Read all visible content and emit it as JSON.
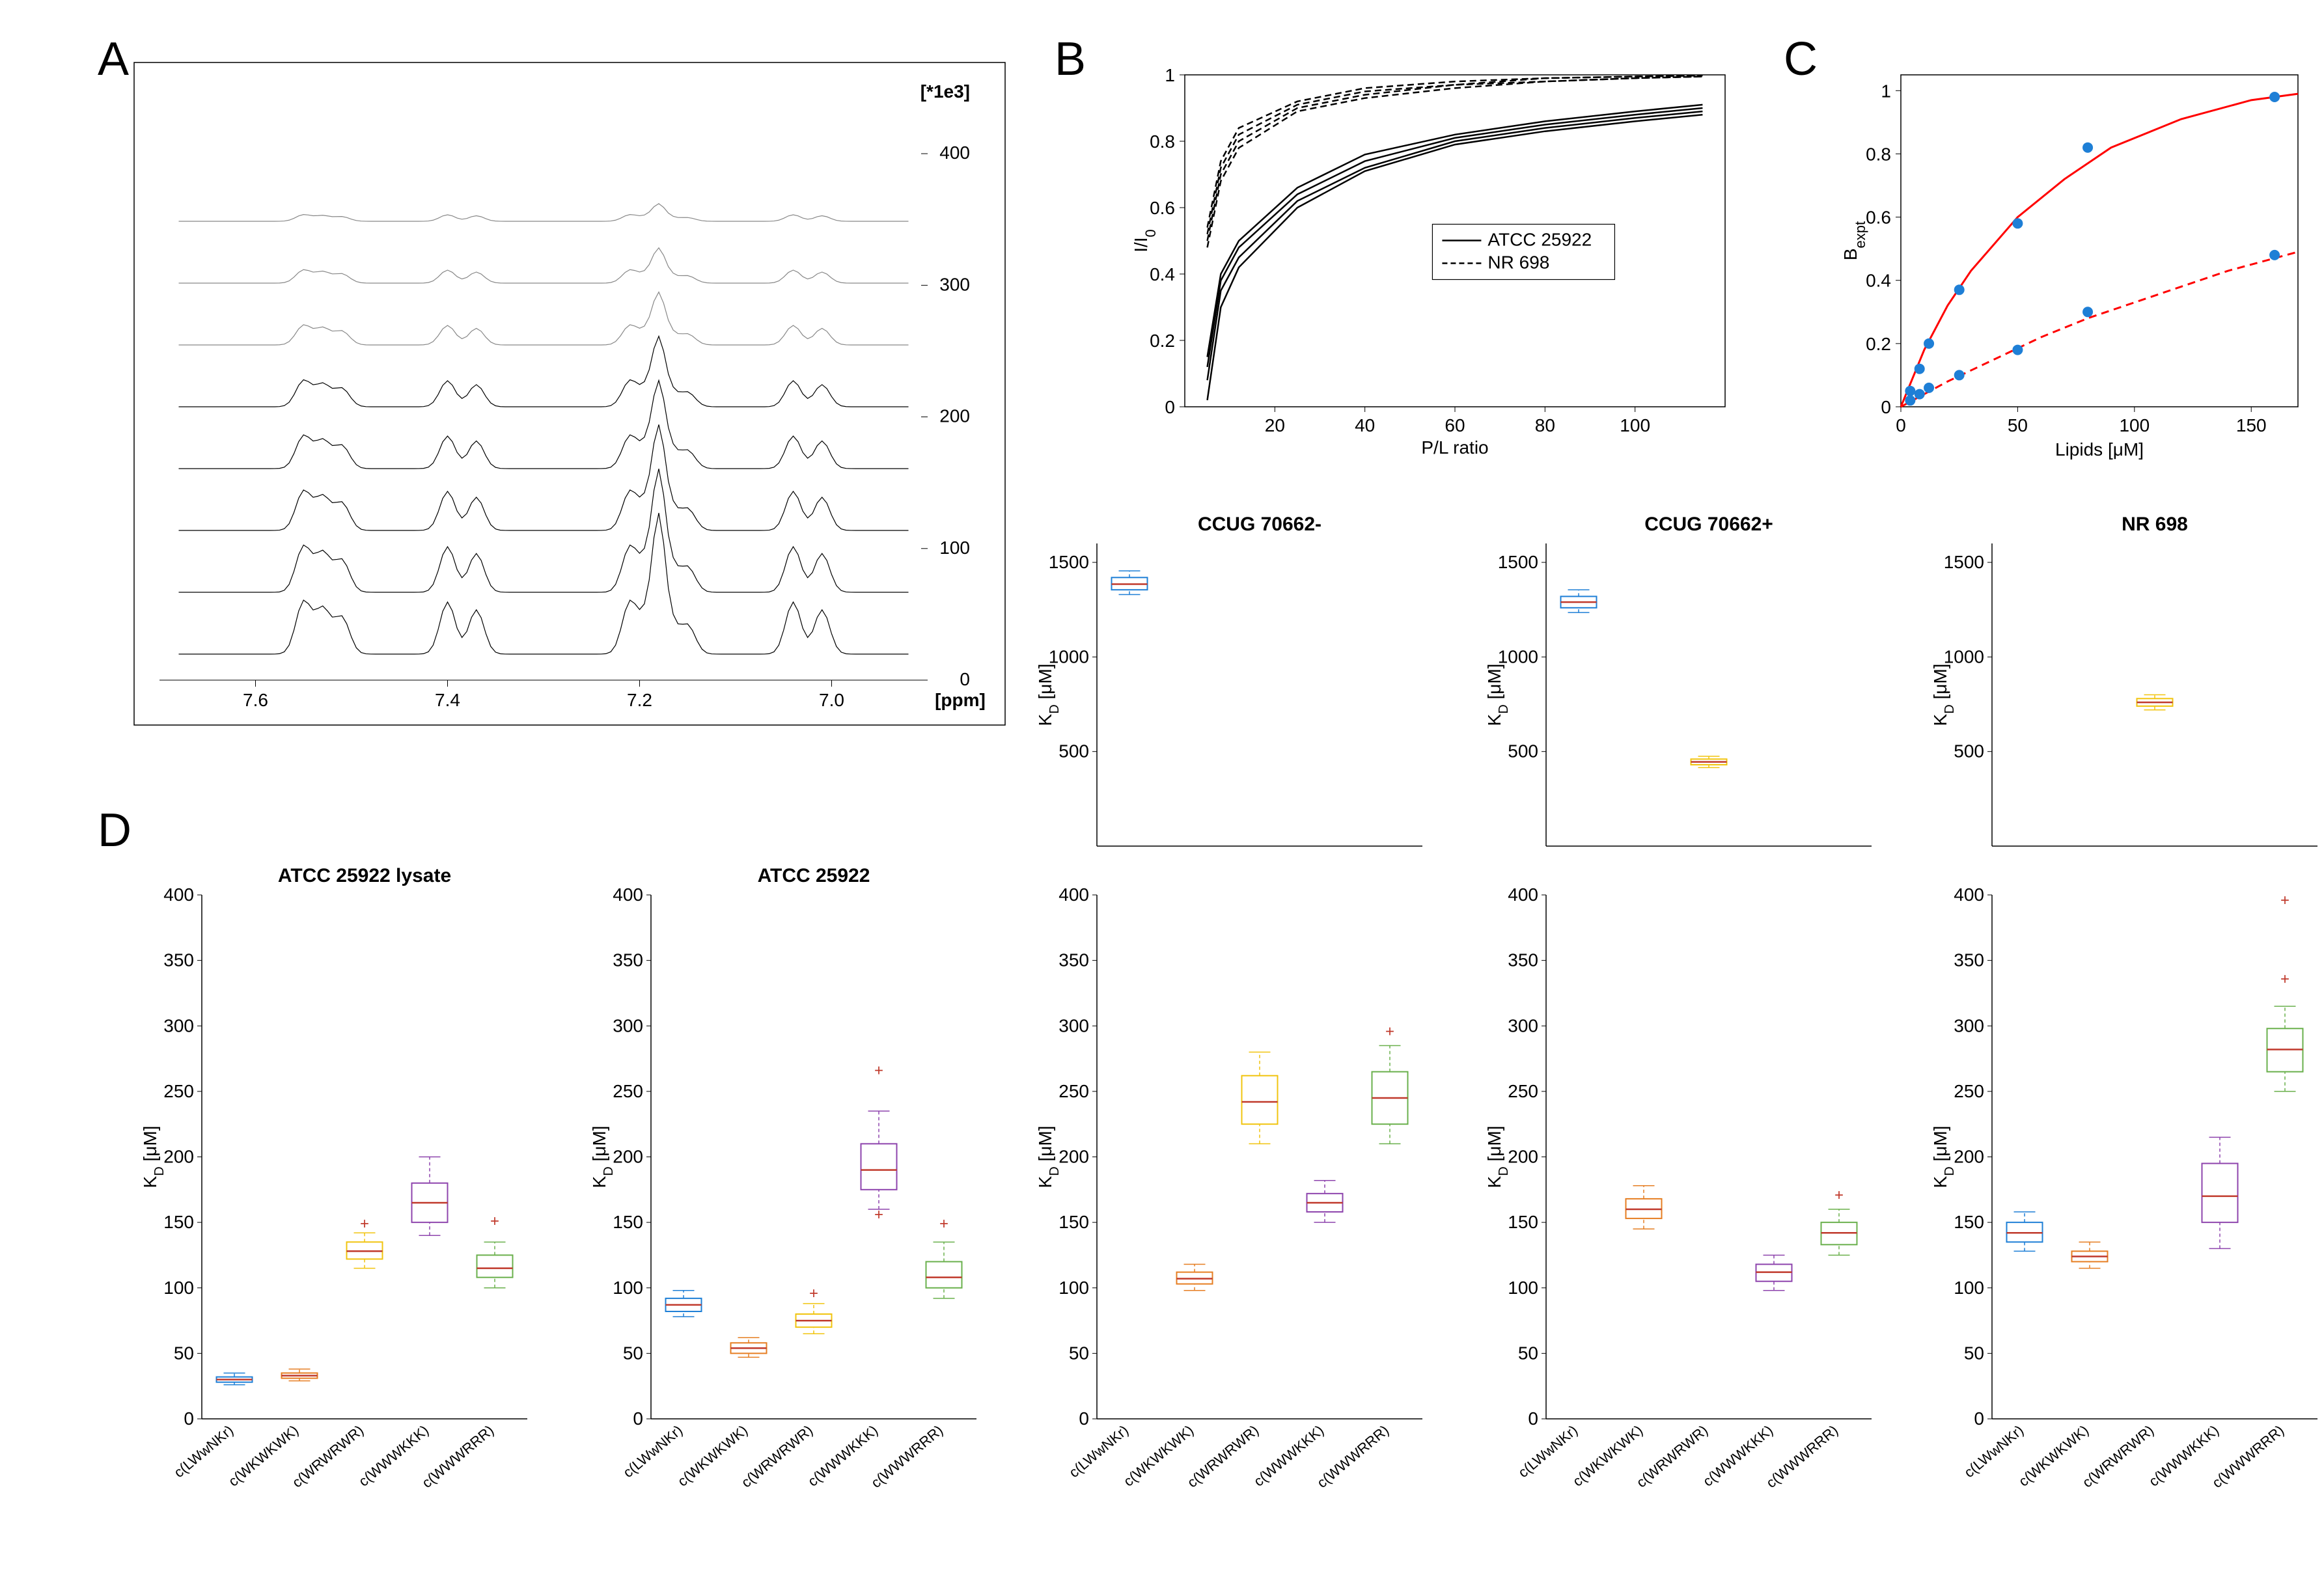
{
  "panels": {
    "A": {
      "label": "A"
    },
    "B": {
      "label": "B",
      "xlabel": "P/L ratio",
      "ylabel": "I/I₀",
      "legend": [
        "ATCC 25922",
        "NR 698"
      ],
      "xlim": [
        0,
        120
      ],
      "ylim": [
        0,
        1
      ],
      "xticks": [
        20,
        40,
        60,
        80,
        100
      ],
      "yticks": [
        0,
        0.2,
        0.4,
        0.6,
        0.8,
        1
      ],
      "series_solid": [
        [
          [
            5,
            0.08
          ],
          [
            8,
            0.35
          ],
          [
            12,
            0.45
          ],
          [
            25,
            0.62
          ],
          [
            40,
            0.72
          ],
          [
            60,
            0.8
          ],
          [
            80,
            0.84
          ],
          [
            100,
            0.87
          ],
          [
            115,
            0.89
          ]
        ],
        [
          [
            5,
            0.02
          ],
          [
            8,
            0.3
          ],
          [
            12,
            0.42
          ],
          [
            25,
            0.6
          ],
          [
            40,
            0.71
          ],
          [
            60,
            0.79
          ],
          [
            80,
            0.83
          ],
          [
            100,
            0.86
          ],
          [
            115,
            0.88
          ]
        ],
        [
          [
            5,
            0.12
          ],
          [
            8,
            0.38
          ],
          [
            12,
            0.48
          ],
          [
            25,
            0.64
          ],
          [
            40,
            0.74
          ],
          [
            60,
            0.81
          ],
          [
            80,
            0.85
          ],
          [
            100,
            0.88
          ],
          [
            115,
            0.9
          ]
        ],
        [
          [
            5,
            0.15
          ],
          [
            8,
            0.4
          ],
          [
            12,
            0.5
          ],
          [
            25,
            0.66
          ],
          [
            40,
            0.76
          ],
          [
            60,
            0.82
          ],
          [
            80,
            0.86
          ],
          [
            100,
            0.89
          ],
          [
            115,
            0.91
          ]
        ]
      ],
      "series_dashed": [
        [
          [
            5,
            0.5
          ],
          [
            8,
            0.7
          ],
          [
            12,
            0.8
          ],
          [
            25,
            0.9
          ],
          [
            40,
            0.94
          ],
          [
            60,
            0.97
          ],
          [
            80,
            0.98
          ],
          [
            100,
            0.99
          ],
          [
            115,
            0.995
          ]
        ],
        [
          [
            5,
            0.48
          ],
          [
            8,
            0.68
          ],
          [
            12,
            0.78
          ],
          [
            25,
            0.89
          ],
          [
            40,
            0.93
          ],
          [
            60,
            0.96
          ],
          [
            80,
            0.98
          ],
          [
            100,
            0.99
          ],
          [
            115,
            0.995
          ]
        ],
        [
          [
            5,
            0.52
          ],
          [
            8,
            0.72
          ],
          [
            12,
            0.82
          ],
          [
            25,
            0.91
          ],
          [
            40,
            0.95
          ],
          [
            60,
            0.97
          ],
          [
            80,
            0.99
          ],
          [
            100,
            0.995
          ],
          [
            115,
            0.998
          ]
        ],
        [
          [
            5,
            0.54
          ],
          [
            8,
            0.74
          ],
          [
            12,
            0.84
          ],
          [
            25,
            0.92
          ],
          [
            40,
            0.96
          ],
          [
            60,
            0.98
          ],
          [
            80,
            0.99
          ],
          [
            100,
            0.995
          ],
          [
            115,
            0.998
          ]
        ]
      ],
      "line_color": "#000000"
    },
    "C": {
      "label": "C",
      "xlabel": "Lipids [μM]",
      "ylabel": "B_expt",
      "xlim": [
        0,
        170
      ],
      "ylim": [
        0,
        1.05
      ],
      "xticks": [
        0,
        50,
        100,
        150
      ],
      "yticks": [
        0,
        0.2,
        0.4,
        0.6,
        0.8,
        1
      ],
      "points_solid": [
        [
          4,
          0.05
        ],
        [
          8,
          0.12
        ],
        [
          12,
          0.2
        ],
        [
          25,
          0.37
        ],
        [
          50,
          0.58
        ],
        [
          80,
          0.82
        ],
        [
          160,
          0.98
        ]
      ],
      "curve_solid": [
        [
          0,
          0
        ],
        [
          10,
          0.18
        ],
        [
          20,
          0.32
        ],
        [
          30,
          0.43
        ],
        [
          50,
          0.6
        ],
        [
          70,
          0.72
        ],
        [
          90,
          0.82
        ],
        [
          120,
          0.91
        ],
        [
          150,
          0.97
        ],
        [
          170,
          0.99
        ]
      ],
      "points_dashed": [
        [
          4,
          0.02
        ],
        [
          8,
          0.04
        ],
        [
          12,
          0.06
        ],
        [
          25,
          0.1
        ],
        [
          50,
          0.18
        ],
        [
          80,
          0.3
        ],
        [
          160,
          0.48
        ]
      ],
      "curve_dashed": [
        [
          0,
          0
        ],
        [
          20,
          0.08
        ],
        [
          40,
          0.15
        ],
        [
          60,
          0.22
        ],
        [
          80,
          0.28
        ],
        [
          100,
          0.33
        ],
        [
          120,
          0.38
        ],
        [
          140,
          0.43
        ],
        [
          160,
          0.47
        ],
        [
          170,
          0.49
        ]
      ],
      "line_color": "#ff0000",
      "point_color": "#1e7fd6"
    },
    "D": {
      "label": "D",
      "ylabel": "K_D [μM]",
      "categories": [
        "c(LWwNKr)",
        "c(WKWKWK)",
        "c(WRWRWR)",
        "c(WWWKKK)",
        "c(WWWRRR)"
      ],
      "colors": [
        "#1e7fd6",
        "#e67e22",
        "#f1c40f",
        "#8e44ad",
        "#6ab04c"
      ],
      "subplots_bottom": [
        {
          "title": "ATCC 25922 lysate",
          "ylim": [
            0,
            400
          ],
          "yticks": [
            0,
            50,
            100,
            150,
            200,
            250,
            300,
            350,
            400
          ],
          "boxes": [
            {
              "q1": 28,
              "med": 30,
              "q3": 32,
              "wl": 26,
              "wh": 35,
              "out": []
            },
            {
              "q1": 31,
              "med": 33,
              "q3": 35,
              "wl": 29,
              "wh": 38,
              "out": []
            },
            {
              "q1": 122,
              "med": 128,
              "q3": 135,
              "wl": 115,
              "wh": 142,
              "out": [
                148
              ]
            },
            {
              "q1": 150,
              "med": 165,
              "q3": 180,
              "wl": 140,
              "wh": 200,
              "out": []
            },
            {
              "q1": 108,
              "med": 115,
              "q3": 125,
              "wl": 100,
              "wh": 135,
              "out": [
                150
              ]
            }
          ]
        },
        {
          "title": "ATCC 25922",
          "ylim": [
            0,
            400
          ],
          "yticks": [
            0,
            50,
            100,
            150,
            200,
            250,
            300,
            350,
            400
          ],
          "boxes": [
            {
              "q1": 82,
              "med": 87,
              "q3": 92,
              "wl": 78,
              "wh": 98,
              "out": []
            },
            {
              "q1": 50,
              "med": 54,
              "q3": 58,
              "wl": 47,
              "wh": 62,
              "out": []
            },
            {
              "q1": 70,
              "med": 75,
              "q3": 80,
              "wl": 65,
              "wh": 88,
              "out": [
                95
              ]
            },
            {
              "q1": 175,
              "med": 190,
              "q3": 210,
              "wl": 160,
              "wh": 235,
              "out": [
                265,
                155
              ]
            },
            {
              "q1": 100,
              "med": 108,
              "q3": 120,
              "wl": 92,
              "wh": 135,
              "out": [
                148
              ]
            }
          ]
        },
        {
          "title": "",
          "ylim": [
            0,
            400
          ],
          "yticks": [
            0,
            50,
            100,
            150,
            200,
            250,
            300,
            350,
            400
          ],
          "boxes": [
            {
              "q1": 0,
              "med": 0,
              "q3": 0,
              "wl": 0,
              "wh": 0,
              "out": []
            },
            {
              "q1": 103,
              "med": 107,
              "q3": 112,
              "wl": 98,
              "wh": 118,
              "out": []
            },
            {
              "q1": 225,
              "med": 242,
              "q3": 262,
              "wl": 210,
              "wh": 280,
              "out": []
            },
            {
              "q1": 158,
              "med": 165,
              "q3": 172,
              "wl": 150,
              "wh": 182,
              "out": []
            },
            {
              "q1": 225,
              "med": 245,
              "q3": 265,
              "wl": 210,
              "wh": 285,
              "out": [
                295
              ]
            }
          ]
        },
        {
          "title": "",
          "ylim": [
            0,
            400
          ],
          "yticks": [
            0,
            50,
            100,
            150,
            200,
            250,
            300,
            350,
            400
          ],
          "boxes": [
            {
              "q1": 0,
              "med": 0,
              "q3": 0,
              "wl": 0,
              "wh": 0,
              "out": []
            },
            {
              "q1": 153,
              "med": 160,
              "q3": 168,
              "wl": 145,
              "wh": 178,
              "out": []
            },
            {
              "q1": 0,
              "med": 0,
              "q3": 0,
              "wl": 0,
              "wh": 0,
              "out": []
            },
            {
              "q1": 105,
              "med": 112,
              "q3": 118,
              "wl": 98,
              "wh": 125,
              "out": []
            },
            {
              "q1": 133,
              "med": 142,
              "q3": 150,
              "wl": 125,
              "wh": 160,
              "out": [
                170
              ]
            }
          ]
        },
        {
          "title": "",
          "ylim": [
            0,
            400
          ],
          "yticks": [
            0,
            50,
            100,
            150,
            200,
            250,
            300,
            350,
            400
          ],
          "boxes": [
            {
              "q1": 135,
              "med": 142,
              "q3": 150,
              "wl": 128,
              "wh": 158,
              "out": []
            },
            {
              "q1": 120,
              "med": 124,
              "q3": 128,
              "wl": 115,
              "wh": 135,
              "out": []
            },
            {
              "q1": 0,
              "med": 0,
              "q3": 0,
              "wl": 0,
              "wh": 0,
              "out": []
            },
            {
              "q1": 150,
              "med": 170,
              "q3": 195,
              "wl": 130,
              "wh": 215,
              "out": []
            },
            {
              "q1": 265,
              "med": 282,
              "q3": 298,
              "wl": 250,
              "wh": 315,
              "out": [
                335,
                395
              ]
            }
          ]
        }
      ],
      "subplots_top": [
        {
          "title": "CCUG 70662-",
          "ylim": [
            0,
            1600
          ],
          "yticks": [
            500,
            1000,
            1500
          ],
          "boxes": [
            {
              "idx": 0,
              "q1": 1355,
              "med": 1385,
              "q3": 1420,
              "wl": 1330,
              "wh": 1455,
              "out": []
            }
          ]
        },
        {
          "title": "CCUG 70662+",
          "ylim": [
            0,
            1600
          ],
          "yticks": [
            500,
            1000,
            1500
          ],
          "boxes": [
            {
              "idx": 0,
              "q1": 1260,
              "med": 1290,
              "q3": 1320,
              "wl": 1235,
              "wh": 1355,
              "out": []
            },
            {
              "idx": 2,
              "q1": 430,
              "med": 445,
              "q3": 460,
              "wl": 415,
              "wh": 475,
              "out": []
            }
          ]
        },
        {
          "title": "NR 698",
          "ylim": [
            0,
            1600
          ],
          "yticks": [
            500,
            1000,
            1500
          ],
          "boxes": [
            {
              "idx": 2,
              "q1": 740,
              "med": 760,
              "q3": 780,
              "wl": 720,
              "wh": 800,
              "out": []
            }
          ]
        }
      ]
    }
  },
  "nmr": {
    "xlim": [
      7.7,
      6.9
    ],
    "xticks": [
      7.6,
      7.4,
      7.2,
      7.0
    ],
    "xlabel": "[ppm]",
    "ylabel_right": "[*1e3]",
    "right_ticks": [
      0,
      100,
      200,
      300,
      400
    ],
    "n_spectra": 8
  }
}
